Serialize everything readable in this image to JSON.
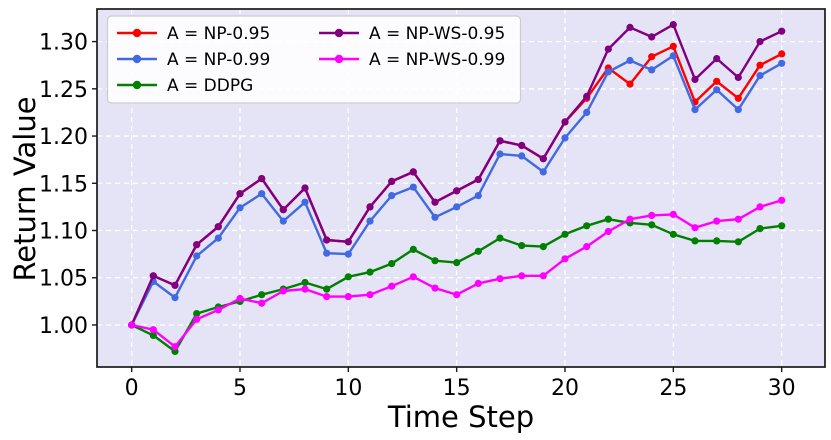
{
  "chart_data": {
    "type": "line",
    "title": "",
    "xlabel": "Time Step",
    "ylabel": "Return Value",
    "x": [
      0,
      1,
      2,
      3,
      4,
      5,
      6,
      7,
      8,
      9,
      10,
      11,
      12,
      13,
      14,
      15,
      16,
      17,
      18,
      19,
      20,
      21,
      22,
      23,
      24,
      25,
      26,
      27,
      28,
      29,
      30
    ],
    "xlim": [
      -1.6,
      32.0
    ],
    "ylim": [
      0.9555,
      1.3345
    ],
    "xticks": [
      0,
      5,
      10,
      15,
      20,
      25,
      30
    ],
    "xtick_labels": [
      "0",
      "5",
      "10",
      "15",
      "20",
      "25",
      "30"
    ],
    "yticks": [
      1.0,
      1.05,
      1.1,
      1.15,
      1.2,
      1.25,
      1.3
    ],
    "ytick_labels": [
      "1.00",
      "1.05",
      "1.10",
      "1.15",
      "1.20",
      "1.25",
      "1.30"
    ],
    "grid": true,
    "grid_color": "#ffffff",
    "plot_bg": "#e4e4f6",
    "spine_color": "#1a1a1a",
    "legend_position": "upper-left",
    "legend_columns": [
      [
        0,
        1,
        2
      ],
      [
        3,
        4
      ]
    ],
    "series": [
      {
        "name": "A = NP-0.95",
        "color": "#ff0000",
        "values": [
          1.0,
          1.052,
          1.042,
          1.085,
          1.104,
          1.139,
          1.155,
          1.122,
          1.145,
          1.09,
          1.088,
          1.125,
          1.152,
          1.162,
          1.13,
          1.142,
          1.154,
          1.195,
          1.19,
          1.176,
          1.215,
          1.24,
          1.272,
          1.255,
          1.284,
          1.295,
          1.236,
          1.258,
          1.24,
          1.275,
          1.287
        ]
      },
      {
        "name": "A = NP-0.99",
        "color": "#4169e1",
        "values": [
          1.0,
          1.046,
          1.029,
          1.073,
          1.092,
          1.124,
          1.139,
          1.11,
          1.13,
          1.076,
          1.075,
          1.11,
          1.137,
          1.146,
          1.114,
          1.125,
          1.137,
          1.181,
          1.179,
          1.162,
          1.198,
          1.225,
          1.268,
          1.28,
          1.27,
          1.285,
          1.228,
          1.249,
          1.228,
          1.264,
          1.277
        ]
      },
      {
        "name": "A = DDPG",
        "color": "#008000",
        "values": [
          1.0,
          0.989,
          0.972,
          1.012,
          1.019,
          1.025,
          1.032,
          1.038,
          1.045,
          1.038,
          1.051,
          1.056,
          1.065,
          1.08,
          1.068,
          1.066,
          1.078,
          1.092,
          1.084,
          1.083,
          1.096,
          1.105,
          1.112,
          1.108,
          1.106,
          1.096,
          1.089,
          1.089,
          1.088,
          1.102,
          1.105
        ]
      },
      {
        "name": "A = NP-WS-0.95",
        "color": "#800080",
        "values": [
          1.0,
          1.052,
          1.042,
          1.085,
          1.104,
          1.139,
          1.155,
          1.122,
          1.145,
          1.09,
          1.088,
          1.125,
          1.152,
          1.162,
          1.13,
          1.142,
          1.154,
          1.195,
          1.19,
          1.176,
          1.215,
          1.242,
          1.292,
          1.315,
          1.305,
          1.318,
          1.26,
          1.282,
          1.262,
          1.3,
          1.311
        ]
      },
      {
        "name": "A = NP-WS-0.99",
        "color": "#ff00ff",
        "values": [
          1.0,
          0.995,
          0.977,
          1.006,
          1.016,
          1.028,
          1.023,
          1.036,
          1.038,
          1.03,
          1.03,
          1.032,
          1.041,
          1.051,
          1.039,
          1.032,
          1.044,
          1.049,
          1.052,
          1.052,
          1.07,
          1.083,
          1.099,
          1.112,
          1.116,
          1.117,
          1.103,
          1.11,
          1.112,
          1.125,
          1.132
        ]
      }
    ]
  }
}
